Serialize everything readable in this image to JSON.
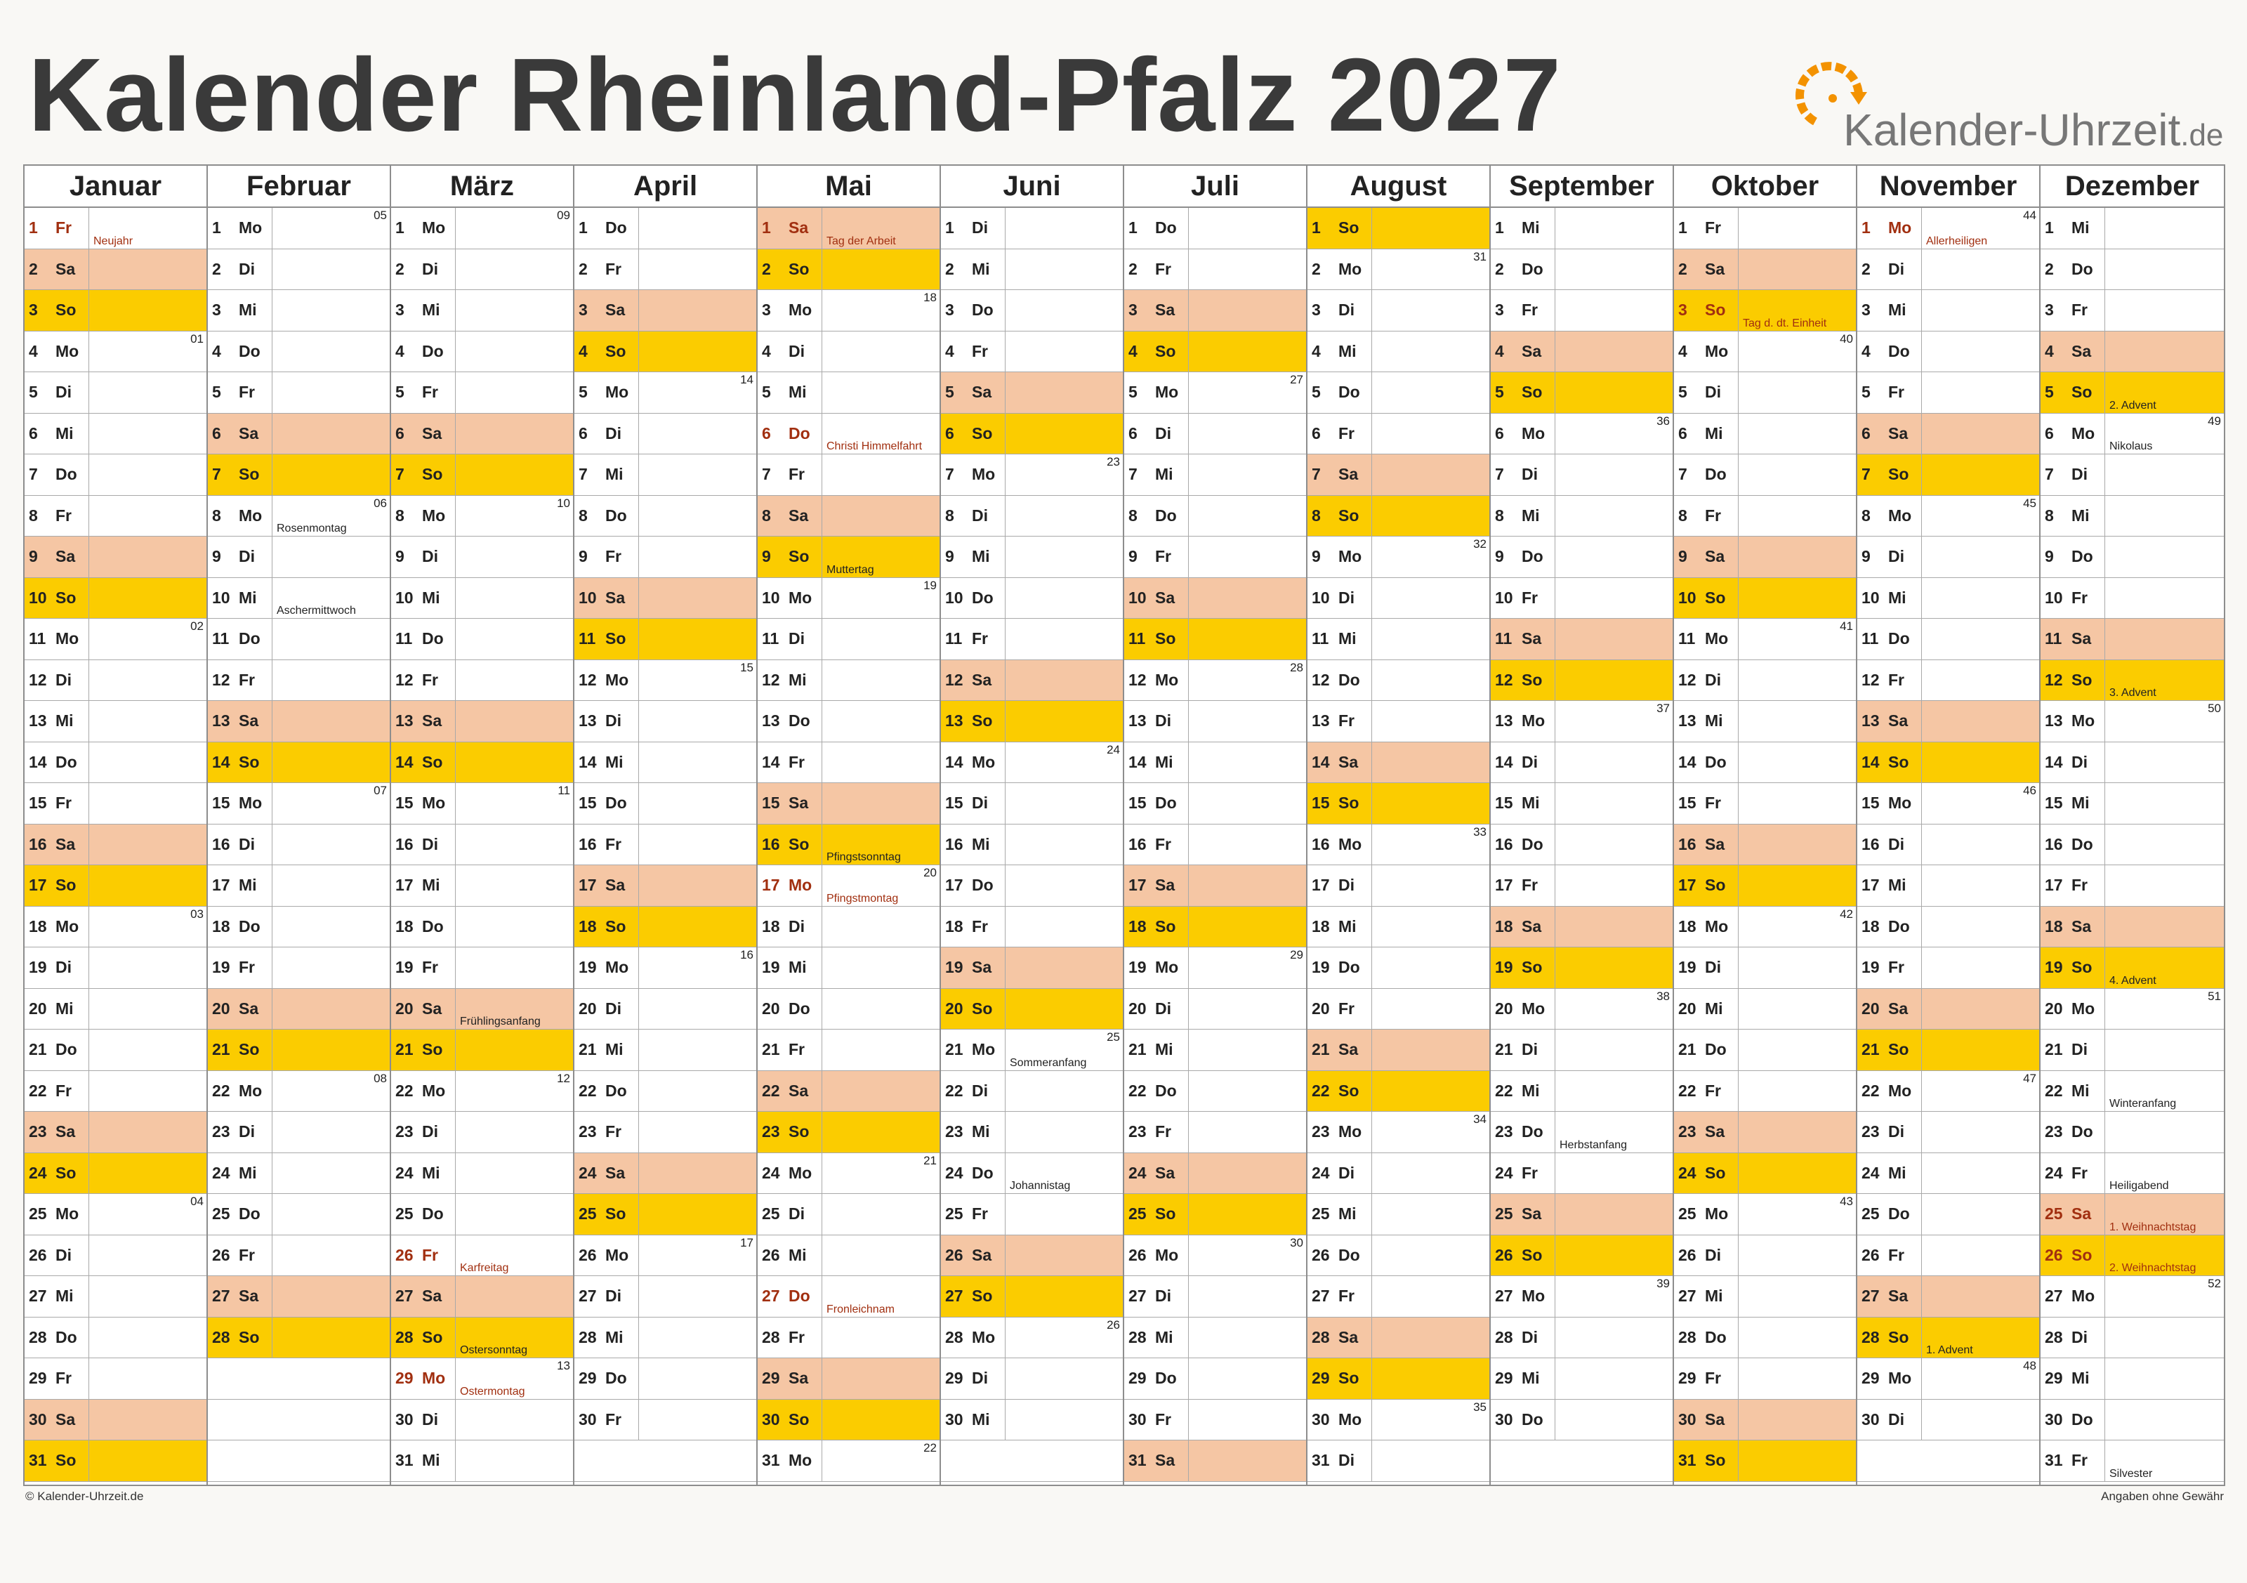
{
  "title": "Kalender Rheinland-Pfalz 2027",
  "logo": {
    "text": "Kalender-Uhrzeit",
    "suffix": ".de",
    "icon": "clock-arrow-icon",
    "accent": "#f39200"
  },
  "footer": {
    "left": "© Kalender-Uhrzeit.de",
    "right": "Angaben ohne Gewähr"
  },
  "colors": {
    "saturday": "#f5c6a4",
    "sunday": "#fbcc00",
    "holiday_text": "#a12f10",
    "grid": "#a9a9a9",
    "border": "#8d8d8d"
  },
  "year": 2027,
  "months": [
    "Januar",
    "Februar",
    "März",
    "April",
    "Mai",
    "Juni",
    "Juli",
    "August",
    "September",
    "Oktober",
    "November",
    "Dezember"
  ],
  "weekday_abbr": [
    "Mo",
    "Di",
    "Mi",
    "Do",
    "Fr",
    "Sa",
    "So"
  ],
  "holidays": {
    "1-1": "Neujahr",
    "3-26": "Karfreitag",
    "3-29": "Ostermontag",
    "5-1": "Tag der Arbeit",
    "5-6": "Christi Himmelfahrt",
    "5-17": "Pfingstmontag",
    "5-27": "Fronleichnam",
    "10-3": "Tag d. dt. Einheit",
    "11-1": "Allerheiligen",
    "12-25": "1. Weihnachtstag",
    "12-26": "2. Weihnachtstag"
  },
  "notes": {
    "2-8": "Rosenmontag",
    "2-10": "Aschermittwoch",
    "3-20": "Frühlingsanfang",
    "3-28": "Ostersonntag",
    "5-9": "Muttertag",
    "5-16": "Pfingstsonntag",
    "6-21": "Sommeranfang",
    "6-24": "Johannistag",
    "9-23": "Herbstanfang",
    "11-28": "1. Advent",
    "12-5": "2. Advent",
    "12-6": "Nikolaus",
    "12-12": "3. Advent",
    "12-19": "4. Advent",
    "12-22": "Winteranfang",
    "12-24": "Heiligabend",
    "12-31": "Silvester"
  }
}
